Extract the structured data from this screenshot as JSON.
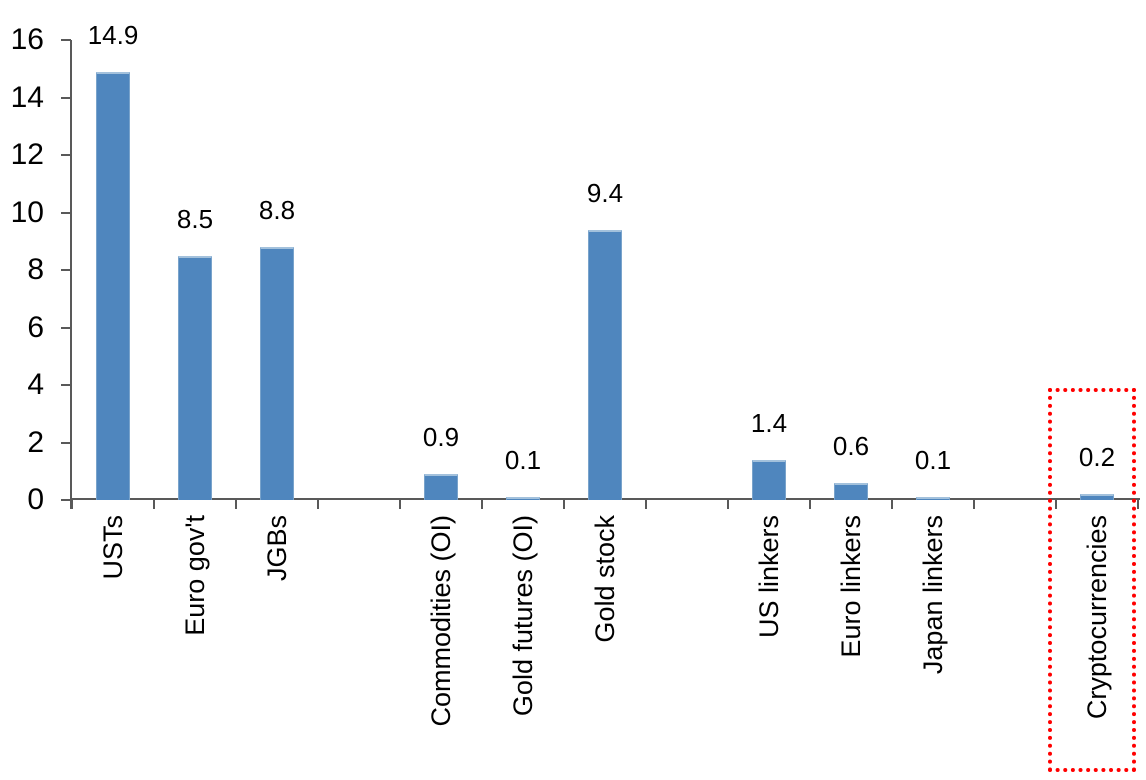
{
  "chart_data": {
    "type": "bar",
    "title": "",
    "xlabel": "",
    "ylabel": "",
    "categories": [
      "USTs",
      "Euro gov't",
      "JGBs",
      "Commodities (OI)",
      "Gold futures (OI)",
      "Gold stock",
      "US linkers",
      "Euro linkers",
      "Japan linkers",
      "Cryptocurrencies"
    ],
    "values": [
      14.9,
      8.5,
      8.8,
      0.9,
      0.1,
      9.4,
      1.4,
      0.6,
      0.1,
      0.2
    ],
    "data_labels": [
      "14.9",
      "8.5",
      "8.8",
      "0.9",
      "0.1",
      "9.4",
      "1.4",
      "0.6",
      "0.1",
      "0.2"
    ],
    "group_breaks_after": [
      "JGBs",
      "Gold stock",
      "Japan linkers"
    ],
    "ylim": [
      0,
      16
    ],
    "yticks": [
      0,
      2,
      4,
      6,
      8,
      10,
      12,
      14,
      16
    ],
    "grid": false,
    "legend": false,
    "bar_color": "#4f86be",
    "axis_color": "#595959",
    "text_color": "#000000",
    "annotations": [
      {
        "type": "box",
        "target": "Cryptocurrencies",
        "border_style": "dotted",
        "color": "#ff0000"
      }
    ]
  }
}
